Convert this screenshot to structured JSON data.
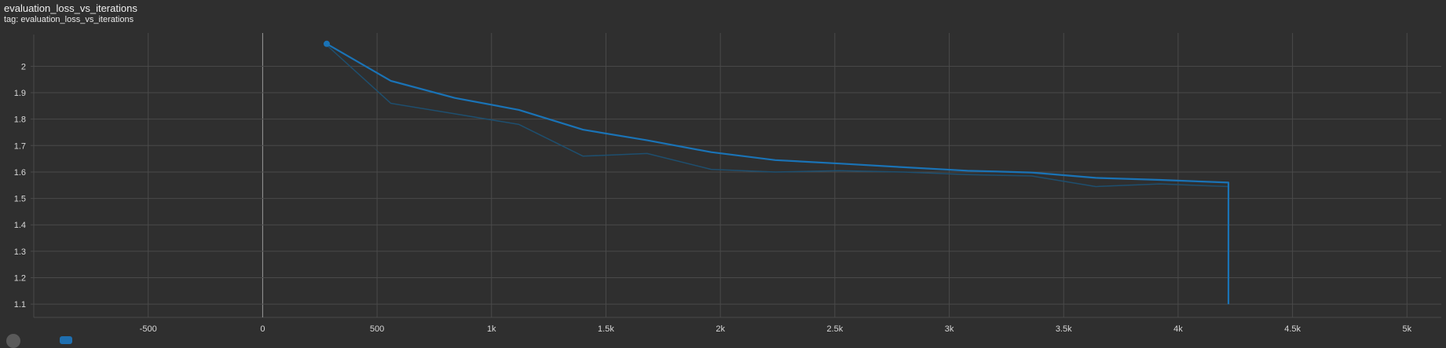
{
  "card": {
    "title": "evaluation_loss_vs_iterations",
    "tag": "tag: evaluation_loss_vs_iterations"
  },
  "colors": {
    "background": "#2f2f2f",
    "grid": "#4a4a4a",
    "smoothed_line": "#1a73b6",
    "raw_line": "#1e4f6f",
    "zero_axis": "#9a9a9a"
  },
  "chart_data": {
    "type": "line",
    "title": "evaluation_loss_vs_iterations",
    "xlabel": "",
    "ylabel": "",
    "xlim": [
      -1000,
      5150
    ],
    "ylim": [
      1.05,
      2.12
    ],
    "grid": true,
    "x_ticks": [
      {
        "value": -500,
        "label": "-500"
      },
      {
        "value": 0,
        "label": "0"
      },
      {
        "value": 500,
        "label": "500"
      },
      {
        "value": 1000,
        "label": "1k"
      },
      {
        "value": 1500,
        "label": "1.5k"
      },
      {
        "value": 2000,
        "label": "2k"
      },
      {
        "value": 2500,
        "label": "2.5k"
      },
      {
        "value": 3000,
        "label": "3k"
      },
      {
        "value": 3500,
        "label": "3.5k"
      },
      {
        "value": 4000,
        "label": "4k"
      },
      {
        "value": 4500,
        "label": "4.5k"
      },
      {
        "value": 5000,
        "label": "5k"
      }
    ],
    "y_ticks": [
      {
        "value": 1.1,
        "label": "1.1"
      },
      {
        "value": 1.2,
        "label": "1.2"
      },
      {
        "value": 1.3,
        "label": "1.3"
      },
      {
        "value": 1.4,
        "label": "1.4"
      },
      {
        "value": 1.5,
        "label": "1.5"
      },
      {
        "value": 1.6,
        "label": "1.6"
      },
      {
        "value": 1.7,
        "label": "1.7"
      },
      {
        "value": 1.8,
        "label": "1.8"
      },
      {
        "value": 1.9,
        "label": "1.9"
      },
      {
        "value": 2.0,
        "label": "2"
      }
    ],
    "series": [
      {
        "role": "raw",
        "x": [
          280,
          560,
          840,
          1120,
          1400,
          1680,
          1960,
          2240,
          2520,
          2800,
          3080,
          3360,
          3640,
          3920,
          4220,
          4220
        ],
        "y": [
          2.08,
          1.86,
          1.82,
          1.78,
          1.66,
          1.67,
          1.61,
          1.6,
          1.605,
          1.6,
          1.59,
          1.585,
          1.545,
          1.555,
          1.545,
          1.1
        ]
      },
      {
        "role": "smoothed",
        "x": [
          280,
          560,
          840,
          1120,
          1400,
          1680,
          1960,
          2240,
          2520,
          2800,
          3080,
          3360,
          3640,
          3920,
          4220,
          4220
        ],
        "y": [
          2.085,
          1.945,
          1.88,
          1.835,
          1.76,
          1.72,
          1.675,
          1.645,
          1.632,
          1.618,
          1.605,
          1.598,
          1.578,
          1.57,
          1.56,
          1.1
        ]
      }
    ]
  }
}
